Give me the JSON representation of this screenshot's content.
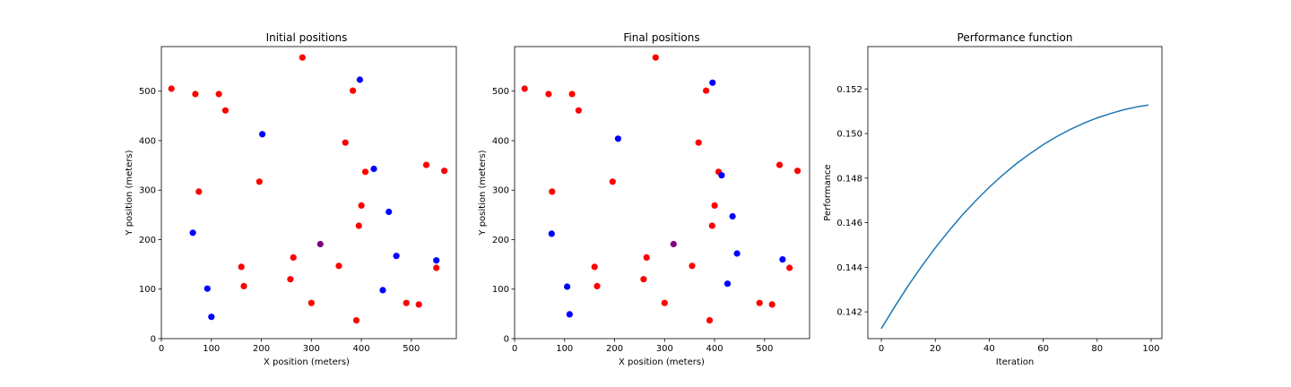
{
  "colors": {
    "red": "#ff0000",
    "blue": "#0000ff",
    "purple": "#800080",
    "line": "#1f77b4"
  },
  "chart_data": [
    {
      "type": "scatter",
      "title": "Initial positions",
      "xlabel": "X position (meters)",
      "ylabel": "Y position (meters)",
      "xlim": [
        0,
        590
      ],
      "ylim": [
        0,
        590
      ],
      "xticks": [
        0,
        100,
        200,
        300,
        400,
        500
      ],
      "yticks": [
        0,
        100,
        200,
        300,
        400,
        500
      ],
      "grid": false,
      "series": [
        {
          "color": "red",
          "points": [
            [
              20,
              505
            ],
            [
              68,
              494
            ],
            [
              115,
              494
            ],
            [
              128,
              461
            ],
            [
              282,
              568
            ],
            [
              383,
              501
            ],
            [
              368,
              396
            ],
            [
              408,
              337
            ],
            [
              530,
              351
            ],
            [
              566,
              339
            ],
            [
              75,
              297
            ],
            [
              196,
              317
            ],
            [
              400,
              269
            ],
            [
              395,
              228
            ],
            [
              160,
              145
            ],
            [
              264,
              164
            ],
            [
              355,
              147
            ],
            [
              550,
              143
            ],
            [
              165,
              106
            ],
            [
              258,
              120
            ],
            [
              300,
              72
            ],
            [
              490,
              72
            ],
            [
              515,
              69
            ],
            [
              390,
              37
            ]
          ]
        },
        {
          "color": "blue",
          "points": [
            [
              397,
              523
            ],
            [
              202,
              413
            ],
            [
              425,
              343
            ],
            [
              455,
              256
            ],
            [
              63,
              214
            ],
            [
              470,
              167
            ],
            [
              550,
              158
            ],
            [
              92,
              101
            ],
            [
              443,
              98
            ],
            [
              100,
              44
            ]
          ]
        },
        {
          "color": "purple",
          "points": [
            [
              318,
              191
            ]
          ]
        }
      ]
    },
    {
      "type": "scatter",
      "title": "Final positions",
      "xlabel": "X position (meters)",
      "ylabel": "Y position (meters)",
      "xlim": [
        0,
        590
      ],
      "ylim": [
        0,
        590
      ],
      "xticks": [
        0,
        100,
        200,
        300,
        400,
        500
      ],
      "yticks": [
        0,
        100,
        200,
        300,
        400,
        500
      ],
      "grid": false,
      "series": [
        {
          "color": "red",
          "points": [
            [
              20,
              505
            ],
            [
              68,
              494
            ],
            [
              115,
              494
            ],
            [
              128,
              461
            ],
            [
              282,
              568
            ],
            [
              383,
              501
            ],
            [
              368,
              396
            ],
            [
              408,
              337
            ],
            [
              530,
              351
            ],
            [
              566,
              339
            ],
            [
              75,
              297
            ],
            [
              196,
              317
            ],
            [
              400,
              269
            ],
            [
              395,
              228
            ],
            [
              160,
              145
            ],
            [
              264,
              164
            ],
            [
              355,
              147
            ],
            [
              550,
              143
            ],
            [
              165,
              106
            ],
            [
              258,
              120
            ],
            [
              300,
              72
            ],
            [
              490,
              72
            ],
            [
              515,
              69
            ],
            [
              390,
              37
            ]
          ]
        },
        {
          "color": "blue",
          "points": [
            [
              396,
              517
            ],
            [
              207,
              404
            ],
            [
              414,
              330
            ],
            [
              436,
              247
            ],
            [
              74,
              212
            ],
            [
              445,
              172
            ],
            [
              536,
              160
            ],
            [
              105,
              105
            ],
            [
              426,
              111
            ],
            [
              110,
              49
            ]
          ]
        },
        {
          "color": "purple",
          "points": [
            [
              318,
              191
            ]
          ]
        }
      ]
    },
    {
      "type": "line",
      "title": "Performance function",
      "xlabel": "Iteration",
      "ylabel": "Performance",
      "xlim": [
        -5,
        104
      ],
      "ylim": [
        0.1408,
        0.1539
      ],
      "xticks": [
        0,
        20,
        40,
        60,
        80,
        100
      ],
      "yticks": [
        0.142,
        0.144,
        0.146,
        0.148,
        0.15,
        0.152
      ],
      "grid": false,
      "series": [
        {
          "color": "line",
          "x": [
            0,
            5,
            10,
            15,
            20,
            25,
            30,
            35,
            40,
            45,
            50,
            55,
            60,
            65,
            70,
            75,
            80,
            85,
            90,
            95,
            99
          ],
          "y": [
            0.14125,
            0.14224,
            0.14318,
            0.14405,
            0.14487,
            0.14563,
            0.14634,
            0.14699,
            0.14759,
            0.14814,
            0.14864,
            0.14909,
            0.1495,
            0.14986,
            0.15018,
            0.15046,
            0.1507,
            0.1509,
            0.15107,
            0.1512,
            0.15128
          ]
        }
      ]
    }
  ]
}
